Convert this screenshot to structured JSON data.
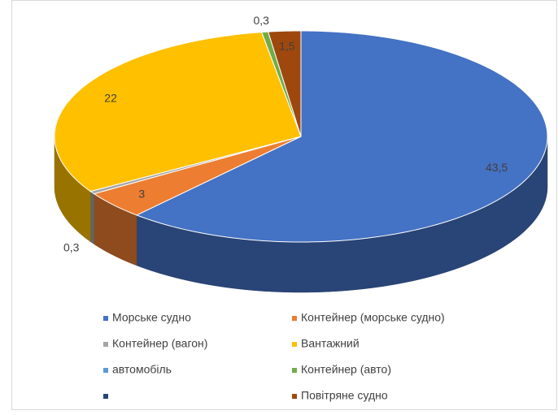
{
  "chart_data": {
    "type": "pie3d",
    "categories": [
      "Морське судно",
      "Контейнер (морське судно)",
      "Контейнер (вагон)",
      "Вантажний",
      "автомобіль",
      "Контейнер (авто)",
      null,
      "Повітряне судно"
    ],
    "colors": [
      "#4472c4",
      "#ed7d31",
      "#a5a5a5",
      "#ffc000",
      "#5b9bd5",
      "#70ad47",
      "#264478",
      "#9e480e"
    ],
    "values": [
      43.5,
      3,
      0.3,
      22,
      null,
      0.3,
      null,
      1.5
    ],
    "value_labels": [
      "43,5",
      "3",
      "0,3",
      "22",
      null,
      "0,3",
      null,
      "1,5"
    ],
    "legend": "bottom"
  }
}
